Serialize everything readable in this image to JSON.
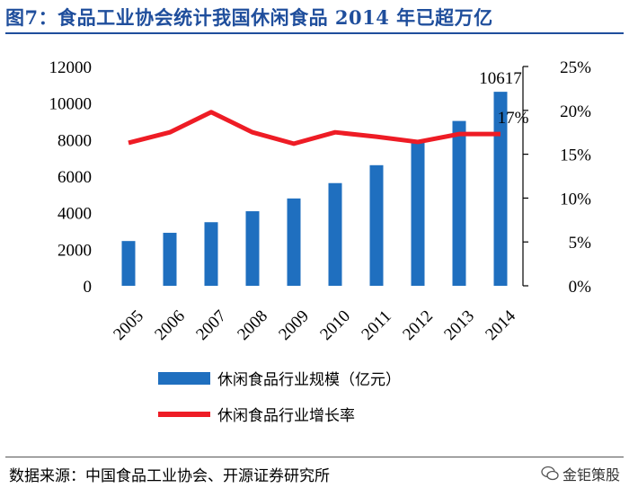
{
  "header": {
    "title": "图7：食品工业协会统计我国休闲食品 2014 年已超万亿"
  },
  "footer": {
    "source": "数据来源：中国食品工业协会、开源证券研究所",
    "watermark": "金钜策股"
  },
  "colors": {
    "bar": "#1f6fbf",
    "line": "#ee1c25",
    "title": "#1f4e9c"
  },
  "chart_data": {
    "type": "bar+line",
    "categories": [
      "2005",
      "2006",
      "2007",
      "2008",
      "2009",
      "2010",
      "2011",
      "2012",
      "2013",
      "2014"
    ],
    "series": [
      {
        "name": "休闲食品行业规模（亿元）",
        "type": "bar",
        "axis": "left",
        "values": [
          2450,
          2900,
          3480,
          4080,
          4780,
          5620,
          6600,
          7820,
          9020,
          10617
        ]
      },
      {
        "name": "休闲食品行业增长率",
        "type": "line",
        "axis": "right",
        "values": [
          16.3,
          17.5,
          19.8,
          17.5,
          16.2,
          17.5,
          17.0,
          16.4,
          17.3,
          17.3
        ]
      }
    ],
    "y_left": {
      "min": 0,
      "max": 12000,
      "ticks": [
        "0",
        "2000",
        "4000",
        "6000",
        "8000",
        "10000",
        "12000"
      ]
    },
    "y_right": {
      "min": 0,
      "max": 25,
      "ticks": [
        "0%",
        "5%",
        "10%",
        "15%",
        "20%",
        "25%"
      ]
    },
    "annotations": [
      {
        "text": "10617"
      },
      {
        "text": "17%"
      }
    ]
  }
}
